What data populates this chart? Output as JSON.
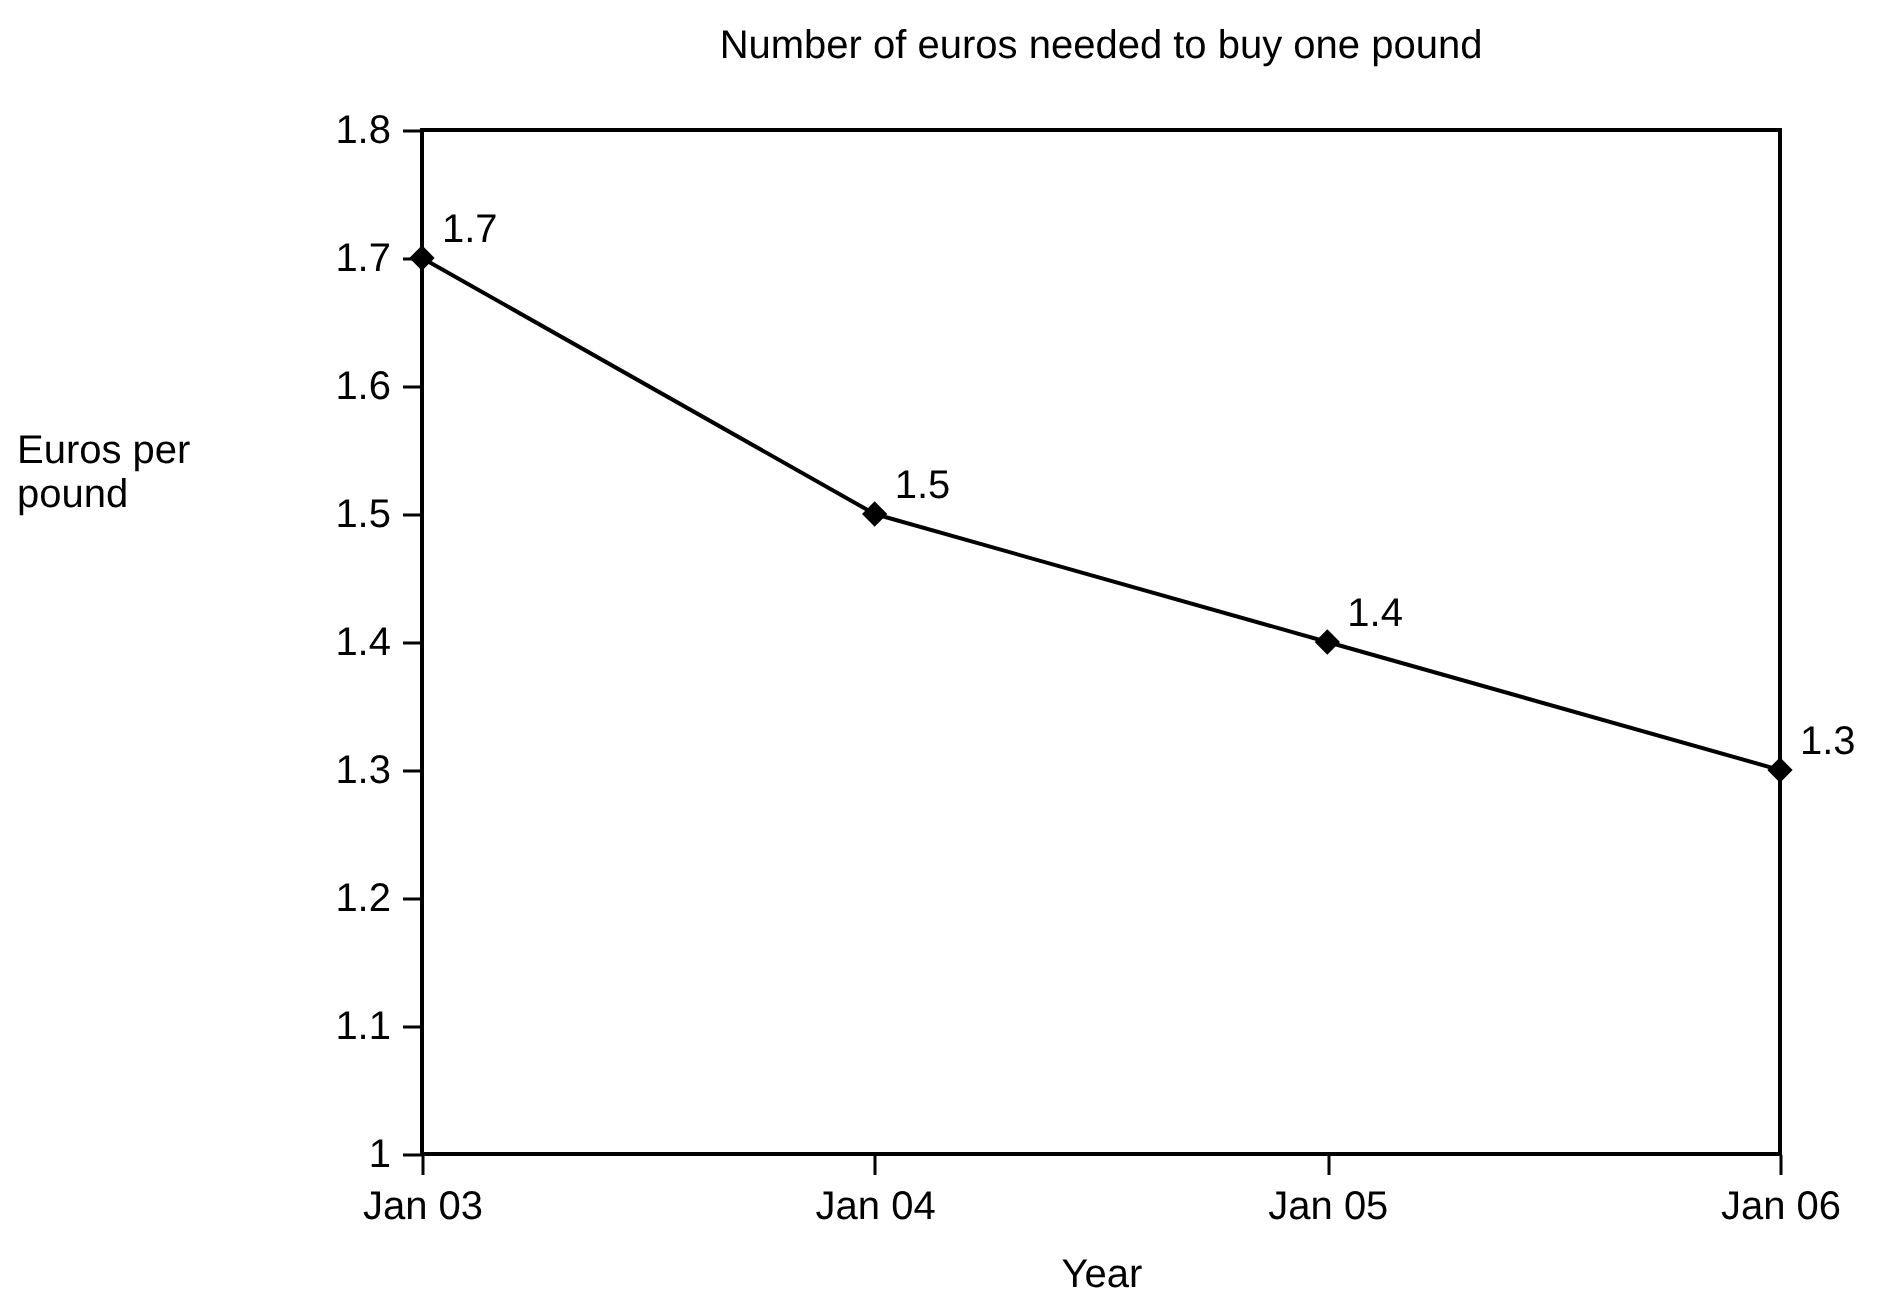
{
  "chart_data": {
    "type": "line",
    "title": "Number of euros needed to buy one pound",
    "xlabel": "Year",
    "ylabel": "Euros per pound",
    "categories": [
      "Jan 03",
      "Jan 04",
      "Jan 05",
      "Jan 06"
    ],
    "series": [
      {
        "color": "#000000",
        "values": [
          1.7,
          1.5,
          1.4,
          1.3
        ]
      }
    ],
    "ylim": [
      1,
      1.8
    ],
    "yticks": [
      1,
      1.1,
      1.2,
      1.3,
      1.4,
      1.5,
      1.6,
      1.7,
      1.8
    ],
    "grid": false,
    "legend": false,
    "marker": "diamond",
    "line_style": "solid",
    "data_labels": true
  }
}
